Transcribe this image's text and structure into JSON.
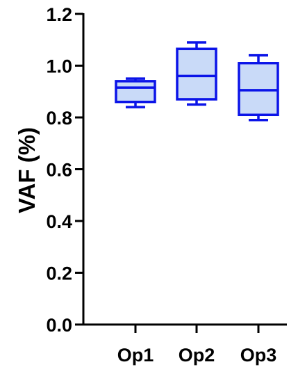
{
  "chart_data": {
    "type": "box",
    "title": "",
    "xlabel": "",
    "ylabel": "VAF (%)",
    "ylim": [
      0.0,
      1.2
    ],
    "yticks": [
      "0.0",
      "0.2",
      "0.4",
      "0.6",
      "0.8",
      "1.0",
      "1.2"
    ],
    "categories": [
      "Op1",
      "Op2",
      "Op3"
    ],
    "boxes": [
      {
        "category": "Op1",
        "min": 0.84,
        "q1": 0.86,
        "median": 0.915,
        "q3": 0.94,
        "max": 0.95
      },
      {
        "category": "Op2",
        "min": 0.85,
        "q1": 0.87,
        "median": 0.96,
        "q3": 1.065,
        "max": 1.09
      },
      {
        "category": "Op3",
        "min": 0.79,
        "q1": 0.81,
        "median": 0.905,
        "q3": 1.01,
        "max": 1.04
      }
    ],
    "grid": false,
    "colors": {
      "box_fill": "#c9daf8",
      "box_stroke": "#0b14e8",
      "axis": "#000000"
    }
  }
}
